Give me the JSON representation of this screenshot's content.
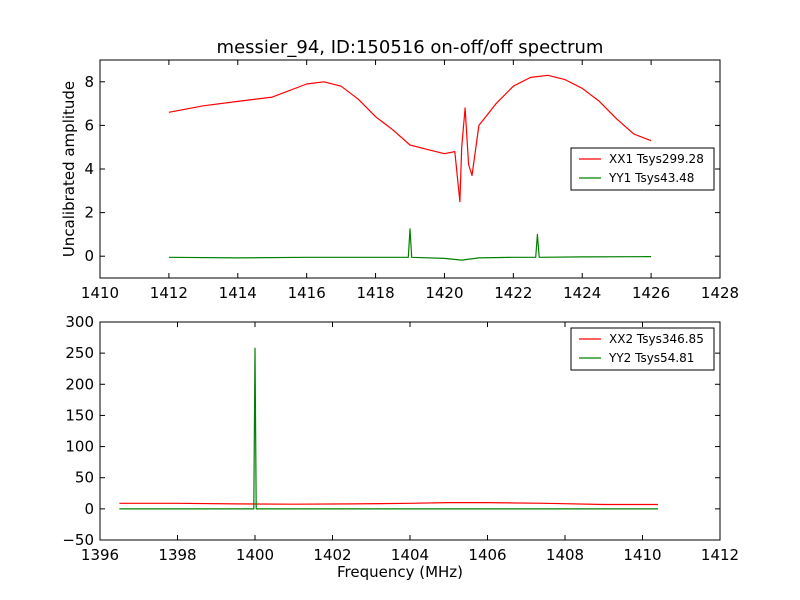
{
  "figure": {
    "title": "messier_94, ID:150516 on-off/off spectrum"
  },
  "chart_data": [
    {
      "type": "line",
      "title": "messier_94, ID:150516 on-off/off spectrum",
      "xlabel": "",
      "ylabel": "Uncalibrated amplitude",
      "xlim": [
        1410,
        1428
      ],
      "ylim": [
        -1,
        9
      ],
      "xticks": [
        1410,
        1412,
        1414,
        1416,
        1418,
        1420,
        1422,
        1424,
        1426,
        1428
      ],
      "yticks": [
        0,
        2,
        4,
        6,
        8
      ],
      "legend_position": "center-right",
      "series": [
        {
          "name": "XX1 Tsys299.28",
          "color": "#ff0000",
          "x": [
            1412.0,
            1413.0,
            1414.0,
            1415.0,
            1416.0,
            1416.5,
            1417.0,
            1417.5,
            1418.0,
            1418.5,
            1419.0,
            1419.5,
            1420.0,
            1420.3,
            1420.45,
            1420.5,
            1420.6,
            1420.7,
            1420.8,
            1421.0,
            1421.5,
            1422.0,
            1422.5,
            1423.0,
            1423.5,
            1424.0,
            1424.5,
            1425.0,
            1425.5,
            1426.0
          ],
          "y": [
            6.6,
            6.9,
            7.1,
            7.3,
            7.9,
            8.0,
            7.8,
            7.2,
            6.4,
            5.8,
            5.1,
            4.9,
            4.7,
            4.8,
            2.5,
            5.0,
            6.8,
            4.2,
            3.7,
            6.0,
            7.0,
            7.8,
            8.2,
            8.3,
            8.1,
            7.7,
            7.1,
            6.3,
            5.6,
            5.3
          ]
        },
        {
          "name": "YY1 Tsys43.48",
          "color": "#008000",
          "x": [
            1412.0,
            1414.0,
            1416.0,
            1418.0,
            1418.95,
            1419.0,
            1419.05,
            1420.0,
            1420.5,
            1421.0,
            1422.0,
            1422.65,
            1422.7,
            1422.75,
            1424.0,
            1426.0
          ],
          "y": [
            -0.05,
            -0.08,
            -0.05,
            -0.05,
            -0.05,
            1.25,
            -0.05,
            -0.1,
            -0.18,
            -0.08,
            -0.05,
            -0.05,
            1.0,
            -0.05,
            -0.03,
            -0.02
          ]
        }
      ]
    },
    {
      "type": "line",
      "title": "",
      "xlabel": "Frequency (MHz)",
      "ylabel": "",
      "xlim": [
        1396,
        1412
      ],
      "ylim": [
        -50,
        300
      ],
      "xticks": [
        1396,
        1398,
        1400,
        1402,
        1404,
        1406,
        1408,
        1410,
        1412
      ],
      "yticks": [
        -50,
        0,
        50,
        100,
        150,
        200,
        250,
        300
      ],
      "legend_position": "top-right",
      "series": [
        {
          "name": "XX2 Tsys346.85",
          "color": "#ff0000",
          "x": [
            1396.5,
            1398.0,
            1399.5,
            1401.0,
            1402.5,
            1404.0,
            1405.0,
            1406.0,
            1407.5,
            1409.0,
            1410.4
          ],
          "y": [
            9,
            9,
            8,
            7.5,
            8,
            9,
            10,
            10,
            9,
            7,
            7
          ]
        },
        {
          "name": "YY2 Tsys54.81",
          "color": "#008000",
          "x": [
            1396.5,
            1399.9,
            1399.97,
            1400.0,
            1400.03,
            1400.1,
            1404.0,
            1410.4
          ],
          "y": [
            0,
            0,
            0,
            258,
            0,
            0,
            0,
            0
          ]
        }
      ]
    }
  ]
}
